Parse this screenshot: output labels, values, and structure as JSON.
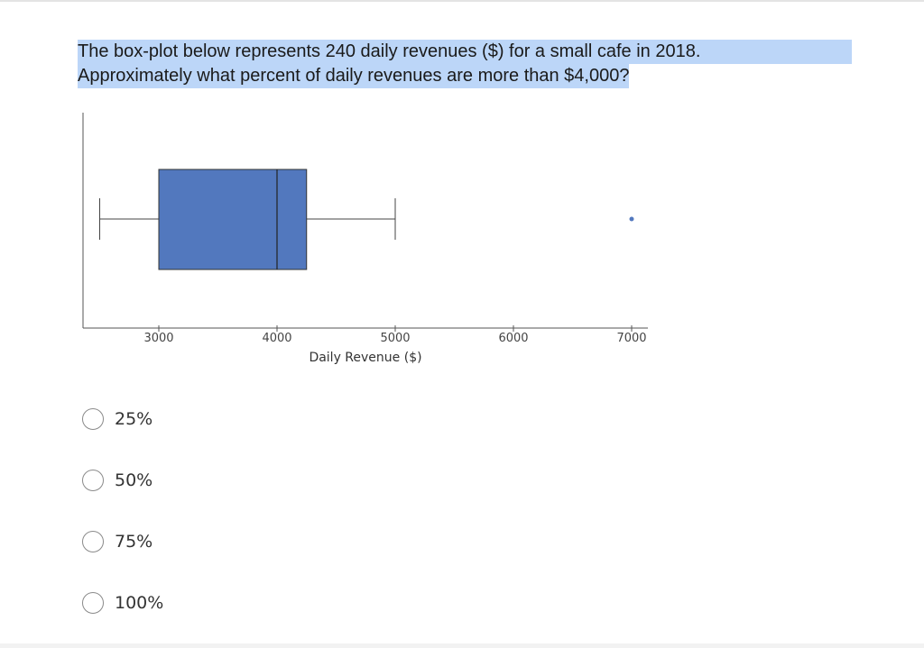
{
  "question": {
    "line1": "The box-plot below represents 240 daily revenues ($) for a small cafe in 2018.",
    "line2": "Approximately what percent of daily revenues are more than $4,000?"
  },
  "chart_data": {
    "type": "boxplot",
    "xlabel": "Daily Revenue ($)",
    "ylabel": "",
    "xlim": [
      2360,
      7080
    ],
    "ticks": [
      3000,
      4000,
      5000,
      6000,
      7000
    ],
    "tick_labels": [
      "3000",
      "4000",
      "5000",
      "6000",
      "7000"
    ],
    "box": {
      "whisker_low": 2500,
      "q1": 3000,
      "median": 4000,
      "q3": 4250,
      "whisker_high": 5000
    },
    "outliers": [
      7000
    ],
    "box_color": "#5278be",
    "grid": false
  },
  "choices": [
    {
      "label": "25%"
    },
    {
      "label": "50%"
    },
    {
      "label": "75%"
    },
    {
      "label": "100%"
    }
  ]
}
